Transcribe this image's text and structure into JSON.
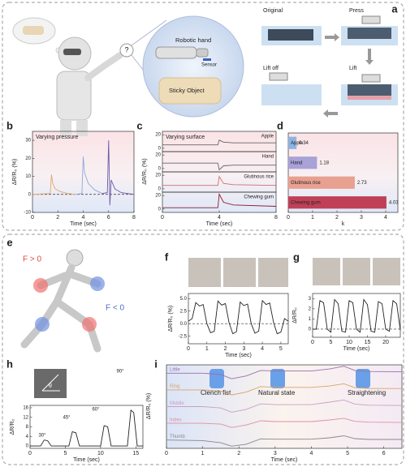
{
  "panels": {
    "labels": [
      "a",
      "b",
      "c",
      "d",
      "e",
      "f",
      "g",
      "h",
      "i"
    ],
    "a": {
      "question": "?",
      "robotic_hand": "Robotic hand",
      "sensor": "Sensor",
      "sticky_object": "Sticky Object",
      "original": "Original",
      "press": "Press",
      "lift_off": "Lift off",
      "lift": "Lift"
    },
    "e": {
      "f_pos": "F > 0",
      "f_neg": "F < 0"
    },
    "h": {
      "theta": "θ"
    },
    "i": {
      "states": [
        "Clench fist",
        "Natural state",
        "Straightening"
      ]
    }
  },
  "chart_data": [
    {
      "type": "line",
      "title": "Varying pressure",
      "x_label": "Time (sec)",
      "y_label": "ΔR/R₀ (%)",
      "xlim": [
        0,
        8
      ],
      "ylim": [
        -10,
        35
      ],
      "xticks": [
        0,
        2,
        4,
        6,
        8
      ],
      "yticks": [
        -10,
        0,
        10,
        20,
        30
      ],
      "reference_line": 0,
      "series": [
        {
          "color": "#e2a86b",
          "x": [
            0,
            1.4,
            1.5,
            1.6,
            1.8,
            2.2,
            2.8,
            3.4
          ],
          "values": [
            0,
            0.5,
            11,
            6,
            3,
            1.5,
            0.5,
            0
          ]
        },
        {
          "color": "#8fa8d8",
          "x": [
            3.4,
            3.9,
            4.0,
            4.1,
            4.4,
            4.9,
            5.5
          ],
          "values": [
            0,
            0.5,
            21,
            12,
            6,
            2.5,
            0.5
          ]
        },
        {
          "color": "#6a5aa8",
          "x": [
            5.5,
            5.9,
            6.0,
            6.1,
            6.2,
            6.5,
            7,
            7.5,
            8
          ],
          "values": [
            0.5,
            1,
            30,
            -6,
            8,
            3,
            1,
            0.5,
            0
          ]
        }
      ]
    },
    {
      "type": "line",
      "title": "Varying surface",
      "xlim": [
        0,
        8
      ],
      "ylim": [
        -5,
        25
      ],
      "yticks": [
        0,
        20
      ],
      "series": [
        {
          "name": "Apple",
          "color": "#666666",
          "x": [
            0,
            3.9,
            4.0,
            4.3,
            5,
            8
          ],
          "values": [
            5,
            5,
            12,
            9,
            8,
            8
          ]
        }
      ]
    },
    {
      "type": "line",
      "y_label": "ΔR/R₀ (%)",
      "xlim": [
        0,
        8
      ],
      "ylim": [
        -5,
        25
      ],
      "yticks": [
        0,
        20
      ],
      "series": [
        {
          "name": "Hand",
          "color": "#666666",
          "x": [
            0,
            3.9,
            4.0,
            4.3,
            5,
            8
          ],
          "values": [
            8,
            8,
            -2,
            4,
            5,
            5
          ]
        }
      ]
    },
    {
      "type": "line",
      "xlim": [
        0,
        8
      ],
      "ylim": [
        -5,
        25
      ],
      "yticks": [
        0,
        20
      ],
      "series": [
        {
          "name": "Glutinous rice",
          "color": "#c87070",
          "x": [
            0,
            3.9,
            4.0,
            4.3,
            5,
            8
          ],
          "values": [
            5,
            5,
            18,
            8,
            6,
            5
          ]
        }
      ]
    },
    {
      "type": "line",
      "x_label": "Time (sec)",
      "xlim": [
        0,
        8
      ],
      "ylim": [
        -5,
        25
      ],
      "xticks": [
        0,
        4,
        8
      ],
      "yticks": [
        0,
        20
      ],
      "series": [
        {
          "name": "Chewing gum",
          "color": "#8b1a2a",
          "x": [
            0,
            3.9,
            4.0,
            4.3,
            5,
            8
          ],
          "values": [
            2,
            2,
            22,
            10,
            6,
            4
          ]
        }
      ]
    },
    {
      "type": "bar",
      "x_label": "k",
      "xlim": [
        0,
        4.5
      ],
      "xticks": [
        0,
        1,
        2,
        3,
        4
      ],
      "categories": [
        "Apple",
        "Hand",
        "Glutinous rice",
        "Chewing gum"
      ],
      "values": [
        0.34,
        1.18,
        2.73,
        4.03
      ],
      "colors": [
        "#8fb3e0",
        "#a8a2d8",
        "#e8a090",
        "#c04058"
      ]
    },
    {
      "type": "line",
      "x_label": "Time (sec)",
      "y_label": "ΔR/R₀ (%)",
      "xlim": [
        0,
        5.4
      ],
      "ylim": [
        -4,
        6
      ],
      "xticks": [
        0,
        1,
        2,
        3,
        4,
        5
      ],
      "yticks": [
        -2.5,
        {
          "value": 0,
          "label": "0.0"
        },
        2.5,
        {
          "value": 5,
          "label": "5.0"
        }
      ],
      "reference_line": 0,
      "series": [
        {
          "color": "#222222",
          "x": [
            0,
            0.2,
            0.4,
            0.6,
            0.8,
            1.0,
            1.2,
            1.4,
            1.6,
            1.8,
            2.0,
            2.2,
            2.4,
            2.6,
            2.8,
            3.0,
            3.2,
            3.4,
            3.6,
            3.8,
            4.0,
            4.2,
            4.4,
            4.6,
            4.8,
            5.0,
            5.2,
            5.4
          ],
          "values": [
            0.5,
            1,
            4.2,
            3.5,
            3.8,
            0,
            -1.8,
            -1.5,
            4.5,
            3.7,
            4,
            0.2,
            -2,
            -1.6,
            4.3,
            3.6,
            3.9,
            0,
            -1.9,
            -1.5,
            4.6,
            3.8,
            4.1,
            0.3,
            -2,
            -1.7,
            1,
            0.5
          ]
        }
      ]
    },
    {
      "type": "line",
      "x_label": "Time (sec)",
      "y_label": "ΔR/R₀",
      "xlim": [
        0,
        24
      ],
      "ylim": [
        -0.8,
        3.5
      ],
      "xticks": [
        0,
        5,
        10,
        15,
        20
      ],
      "yticks": [
        0,
        1,
        2,
        3
      ],
      "reference_line": 0,
      "series": [
        {
          "color": "#222222",
          "x": [
            0,
            1,
            2,
            3,
            4,
            5,
            6,
            7,
            8,
            9,
            10,
            11,
            12,
            13,
            14,
            15,
            16,
            17,
            18,
            19,
            20,
            21,
            22,
            23,
            24
          ],
          "values": [
            0,
            0,
            2.8,
            2.6,
            0,
            -0.3,
            2.9,
            2.5,
            -0.2,
            -0.3,
            2.8,
            2.6,
            0,
            -0.3,
            2.9,
            2.4,
            -0.2,
            -0.3,
            2.7,
            2.5,
            0,
            -0.2,
            2.8,
            2.5,
            -0.1
          ]
        }
      ]
    },
    {
      "type": "line",
      "x_label": "Time (sec)",
      "y_label": "ΔR/R₀",
      "xlim": [
        0,
        16
      ],
      "ylim": [
        -1,
        17
      ],
      "xticks": [
        0,
        5,
        10,
        15
      ],
      "yticks": [
        0,
        4,
        8,
        12,
        16
      ],
      "annotations": [
        "30°",
        "45°",
        "60°",
        "90°"
      ],
      "series": [
        {
          "color": "#222222",
          "x": [
            0,
            1.5,
            2,
            2.5,
            3,
            5.5,
            6,
            6.5,
            7,
            10,
            10.5,
            11,
            11.5,
            13.8,
            14.3,
            14.7,
            15.2,
            16
          ],
          "values": [
            0,
            0,
            2.5,
            2.2,
            0,
            0,
            6,
            5.5,
            0,
            0,
            8.5,
            8,
            0,
            0,
            15,
            14,
            0,
            0
          ]
        }
      ]
    },
    {
      "type": "line",
      "y_label": "ΔR/R₀ (%)",
      "xlim": [
        0,
        6.5
      ],
      "ylim": [
        -3,
        3
      ],
      "series": [
        {
          "name": "Little",
          "color": "#9a6fb0",
          "x": [
            0,
            1,
            1.5,
            1.8,
            2.2,
            2.6,
            3,
            4,
            4.5,
            4.9,
            5.2,
            5.6,
            6.5
          ],
          "values": [
            0,
            0,
            -0.5,
            -2,
            -1,
            1,
            0.8,
            0.8,
            1.5,
            2.5,
            1,
            0.6,
            0.5
          ]
        }
      ]
    },
    {
      "type": "line",
      "xlim": [
        0,
        6.5
      ],
      "ylim": [
        -3,
        3
      ],
      "series": [
        {
          "name": "Ring",
          "color": "#d9a46a",
          "x": [
            0,
            1,
            1.5,
            1.8,
            2.2,
            2.6,
            3,
            4,
            4.5,
            4.9,
            5.2,
            5.6,
            6.5
          ],
          "values": [
            0,
            0,
            -0.4,
            -1.8,
            -0.8,
            1.2,
            0.9,
            0.9,
            1.4,
            2.2,
            0.8,
            0.5,
            0.5
          ]
        }
      ]
    },
    {
      "type": "line",
      "xlim": [
        0,
        6.5
      ],
      "ylim": [
        -3,
        3
      ],
      "series": [
        {
          "name": "Middle",
          "color": "#c9a0c0",
          "x": [
            0,
            1,
            1.5,
            1.8,
            2.2,
            2.6,
            3,
            4,
            4.5,
            4.9,
            5.2,
            5.6,
            6.5
          ],
          "values": [
            0,
            0,
            -0.5,
            -2,
            -1,
            1,
            0.7,
            0.7,
            1.6,
            2.4,
            0.9,
            0.5,
            0.4
          ]
        }
      ]
    },
    {
      "type": "line",
      "xlim": [
        0,
        6.5
      ],
      "ylim": [
        -3,
        3
      ],
      "series": [
        {
          "name": "Index",
          "color": "#e08fa0",
          "x": [
            0,
            1,
            1.5,
            1.8,
            2.2,
            2.6,
            3,
            4,
            4.5,
            4.9,
            5.2,
            5.6,
            6.5
          ],
          "values": [
            0,
            0,
            -0.3,
            -1.5,
            -0.6,
            0.9,
            0.6,
            0.6,
            1.2,
            1.8,
            0.7,
            0.4,
            0.3
          ]
        }
      ]
    },
    {
      "type": "line",
      "x_label": "Time (sec)",
      "xlim": [
        0,
        6.5
      ],
      "ylim": [
        -3,
        3
      ],
      "xticks": [
        0,
        1,
        2,
        3,
        4,
        5,
        6
      ],
      "series": [
        {
          "name": "Thumb",
          "color": "#888888",
          "x": [
            0,
            1,
            1.5,
            1.8,
            2.2,
            2.6,
            3,
            4,
            4.5,
            4.9,
            5.2,
            5.6,
            6.5
          ],
          "values": [
            0,
            -0.2,
            -1,
            -2.2,
            -1.5,
            0.4,
            0.3,
            0.3,
            0.8,
            1.5,
            0.5,
            0.2,
            0.2
          ]
        }
      ]
    }
  ]
}
